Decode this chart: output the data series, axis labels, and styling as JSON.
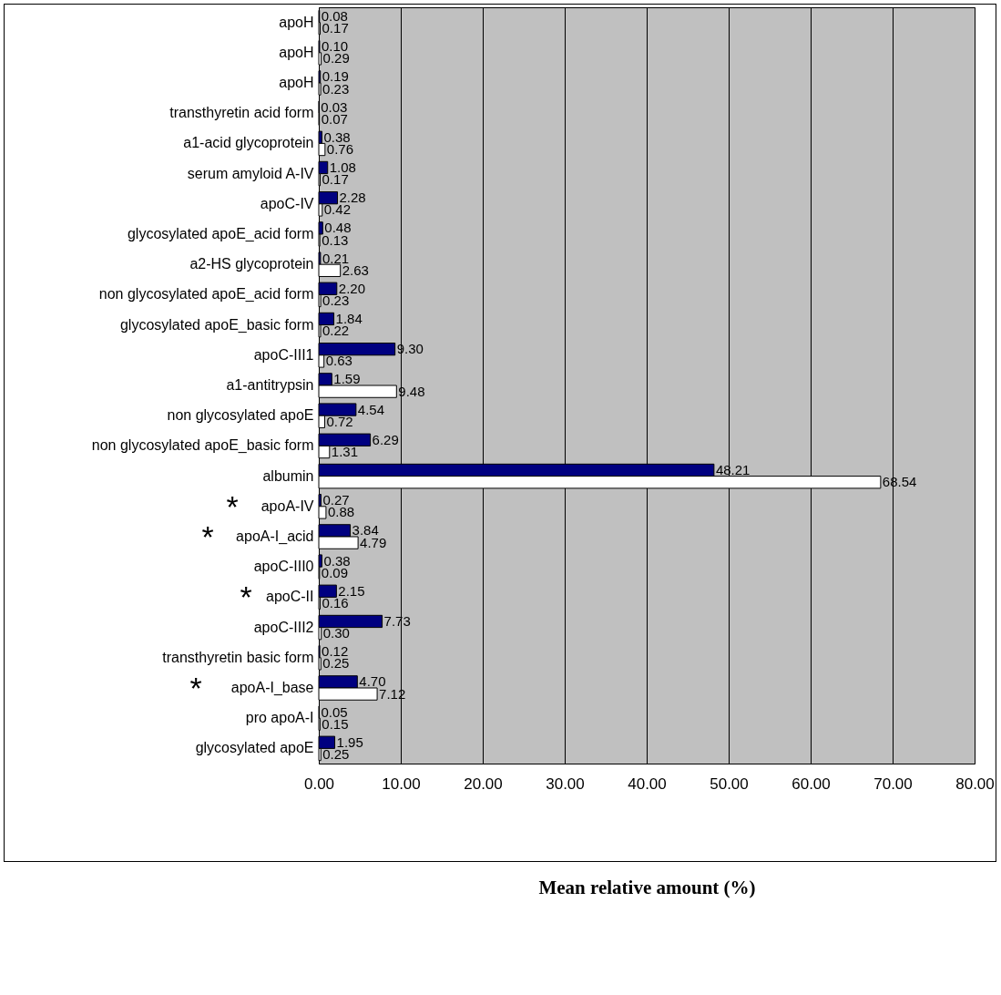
{
  "chart_data": {
    "type": "bar",
    "orientation": "horizontal",
    "xlabel": "Mean relative amount (%)",
    "categories": [
      "apoH",
      "apoH",
      "apoH",
      "transthyretin acid form",
      "a1-acid glycoprotein",
      "serum amyloid A-IV",
      "apoC-IV",
      "glycosylated apoE_acid form",
      "a2-HS glycoprotein",
      "non glycosylated apoE_acid form",
      "glycosylated apoE_basic form",
      "apoC-III1",
      "a1-antitrypsin",
      "non glycosylated apoE",
      "non glycosylated apoE_basic form",
      "albumin",
      "apoA-IV",
      "apoA-I_acid",
      "apoC-III0",
      "apoC-II",
      "apoC-III2",
      "transthyretin basic form",
      "apoA-I_base",
      "pro apoA-I",
      "glycosylated apoE"
    ],
    "series": [
      {
        "color": "#000080",
        "values": [
          0.08,
          0.1,
          0.19,
          0.03,
          0.38,
          1.08,
          2.28,
          0.48,
          0.21,
          2.2,
          1.84,
          9.3,
          1.59,
          4.54,
          6.29,
          48.21,
          0.27,
          3.84,
          0.38,
          2.15,
          7.73,
          0.12,
          4.7,
          0.05,
          1.95
        ],
        "value_labels": [
          "0.08",
          "0.10",
          "0.19",
          "0.03",
          "0.38",
          "1.08",
          "2.28",
          "0.48",
          "0.21",
          "2.20",
          "1.84",
          "9.30",
          "1.59",
          "4.54",
          "6.29",
          "48.21",
          "0.27",
          "3.84",
          "0.38",
          "2.15",
          "7.73",
          "0.12",
          "4.70",
          "0.05",
          "1.95"
        ]
      },
      {
        "color": "#ffffff",
        "values": [
          0.17,
          0.29,
          0.23,
          0.07,
          0.76,
          0.17,
          0.42,
          0.13,
          2.63,
          0.23,
          0.22,
          0.63,
          9.48,
          0.72,
          1.31,
          68.54,
          0.88,
          4.79,
          0.09,
          0.16,
          0.3,
          0.25,
          7.12,
          0.15,
          0.25
        ],
        "value_labels": [
          "0.17",
          "0.29",
          "0.23",
          "0.07",
          "0.76",
          "0.17",
          "0.42",
          "0.13",
          "2.63",
          "0.23",
          "0.22",
          "0.63",
          "9.48",
          "0.72",
          "1.31",
          "68.54",
          "0.88",
          "4.79",
          "0.09",
          "0.16",
          "0.30",
          "0.25",
          "7.12",
          "0.15",
          "0.25"
        ]
      }
    ],
    "xlim": [
      0,
      80
    ],
    "xticks": [
      {
        "value": 0,
        "label": "0.00"
      },
      {
        "value": 10,
        "label": "10.00"
      },
      {
        "value": 20,
        "label": "20.00"
      },
      {
        "value": 30,
        "label": "30.00"
      },
      {
        "value": 40,
        "label": "40.00"
      },
      {
        "value": 50,
        "label": "50.00"
      },
      {
        "value": 60,
        "label": "60.00"
      },
      {
        "value": 70,
        "label": "70.00"
      },
      {
        "value": 80,
        "label": "80.00"
      }
    ],
    "grid": "x",
    "legend": false,
    "annotations": [
      "*",
      "*",
      "*",
      "*"
    ]
  }
}
